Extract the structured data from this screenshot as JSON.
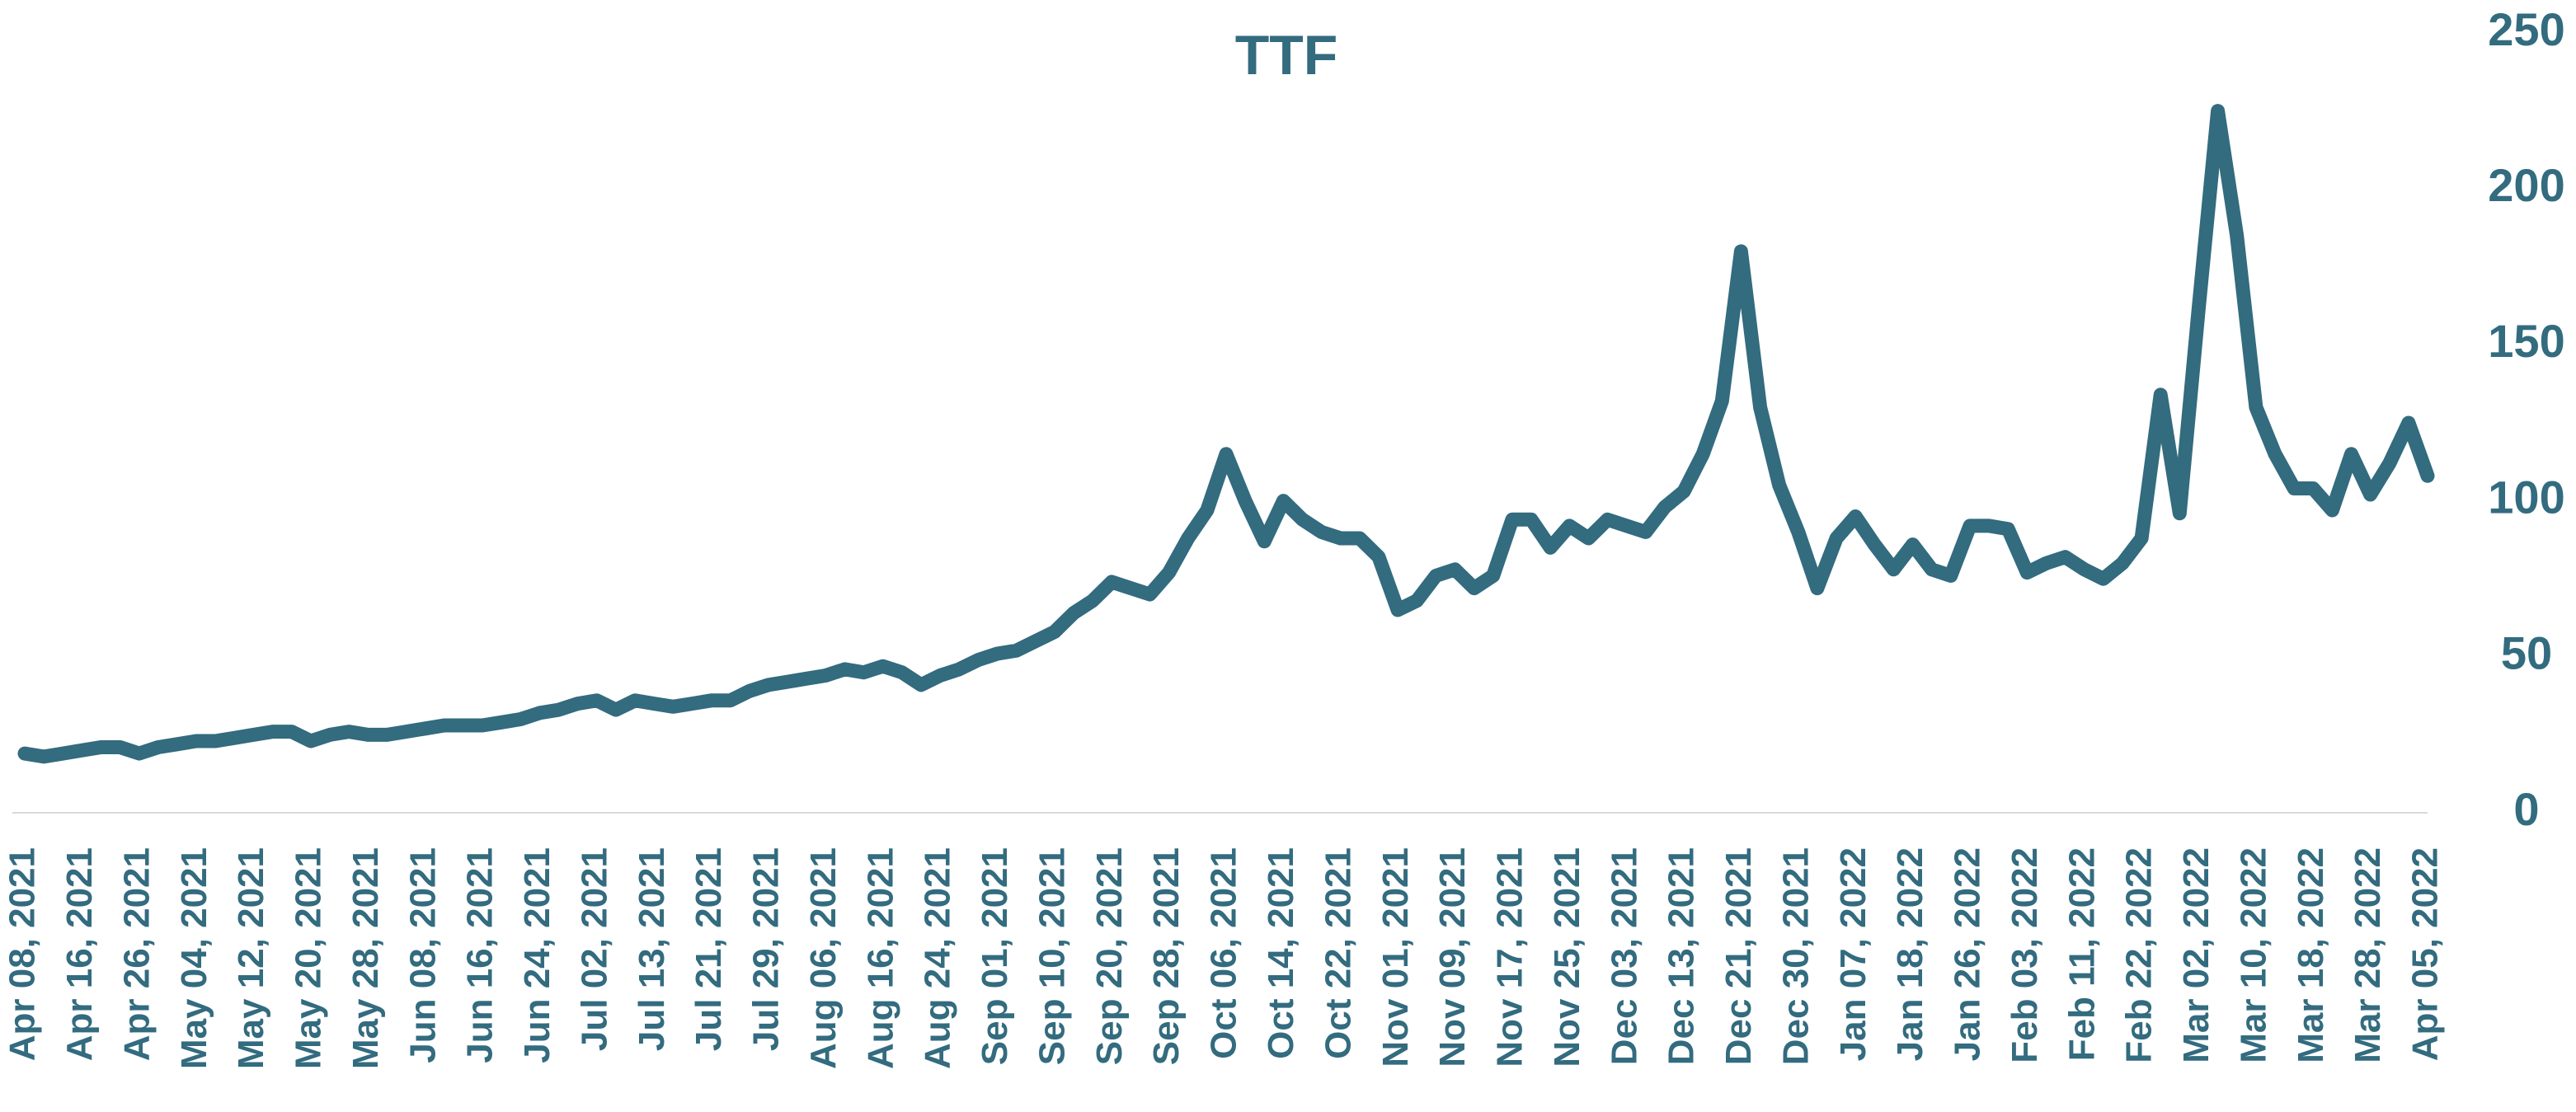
{
  "chart_data": {
    "type": "line",
    "title": "TTF",
    "categories": [
      "Apr 08, 2021",
      null,
      null,
      "Apr 16, 2021",
      null,
      null,
      "Apr 26, 2021",
      null,
      null,
      "May 04, 2021",
      null,
      null,
      "May 12, 2021",
      null,
      null,
      "May 20, 2021",
      null,
      null,
      "May 28, 2021",
      null,
      null,
      "Jun 08, 2021",
      null,
      null,
      "Jun 16, 2021",
      null,
      null,
      "Jun 24, 2021",
      null,
      null,
      "Jul 02, 2021",
      null,
      null,
      "Jul 13, 2021",
      null,
      null,
      "Jul 21, 2021",
      null,
      null,
      "Jul 29, 2021",
      null,
      null,
      "Aug 06, 2021",
      null,
      null,
      "Aug 16, 2021",
      null,
      null,
      "Aug 24, 2021",
      null,
      null,
      "Sep 01, 2021",
      null,
      null,
      "Sep 10, 2021",
      null,
      null,
      "Sep 20, 2021",
      null,
      null,
      "Sep 28, 2021",
      null,
      null,
      "Oct 06, 2021",
      null,
      null,
      "Oct 14, 2021",
      null,
      null,
      "Oct 22, 2021",
      null,
      null,
      "Nov 01, 2021",
      null,
      null,
      "Nov 09, 2021",
      null,
      null,
      "Nov 17, 2021",
      null,
      null,
      "Nov 25, 2021",
      null,
      null,
      "Dec 03, 2021",
      null,
      null,
      "Dec 13, 2021",
      null,
      null,
      "Dec 21, 2021",
      null,
      null,
      "Dec 30, 2021",
      null,
      null,
      "Jan 07, 2022",
      null,
      null,
      "Jan 18, 2022",
      null,
      null,
      "Jan 26, 2022",
      null,
      null,
      "Feb 03, 2022",
      null,
      null,
      "Feb 11, 2022",
      null,
      null,
      "Feb 22, 2022",
      null,
      null,
      "Mar 02, 2022",
      null,
      null,
      "Mar 10, 2022",
      null,
      null,
      "Mar 18, 2022",
      null,
      null,
      "Mar 28, 2022",
      null,
      null,
      "Apr 05, 2022"
    ],
    "series": [
      {
        "name": "TTF",
        "color": "#336b7f",
        "values": [
          19,
          18,
          19,
          20,
          21,
          21,
          19,
          21,
          22,
          23,
          23,
          24,
          25,
          26,
          26,
          23,
          25,
          26,
          25,
          25,
          26,
          27,
          28,
          28,
          28,
          29,
          30,
          32,
          33,
          35,
          36,
          33,
          36,
          35,
          34,
          35,
          36,
          36,
          39,
          41,
          42,
          43,
          44,
          46,
          45,
          47,
          45,
          41,
          44,
          46,
          49,
          51,
          52,
          55,
          58,
          64,
          68,
          74,
          72,
          70,
          77,
          88,
          97,
          115,
          100,
          87,
          100,
          94,
          90,
          88,
          88,
          82,
          65,
          68,
          76,
          78,
          72,
          76,
          94,
          94,
          85,
          92,
          88,
          94,
          92,
          90,
          98,
          103,
          115,
          132,
          180,
          130,
          105,
          90,
          72,
          88,
          95,
          86,
          78,
          86,
          78,
          76,
          92,
          92,
          91,
          77,
          80,
          82,
          78,
          75,
          80,
          88,
          134,
          96,
          162,
          225,
          185,
          130,
          115,
          104,
          104,
          97,
          115,
          102,
          112,
          125,
          108
        ]
      }
    ],
    "ylim": [
      0,
      250
    ],
    "yticks": [
      0,
      50,
      100,
      150,
      200,
      250
    ],
    "y_axis_side": "right",
    "grid": false
  }
}
